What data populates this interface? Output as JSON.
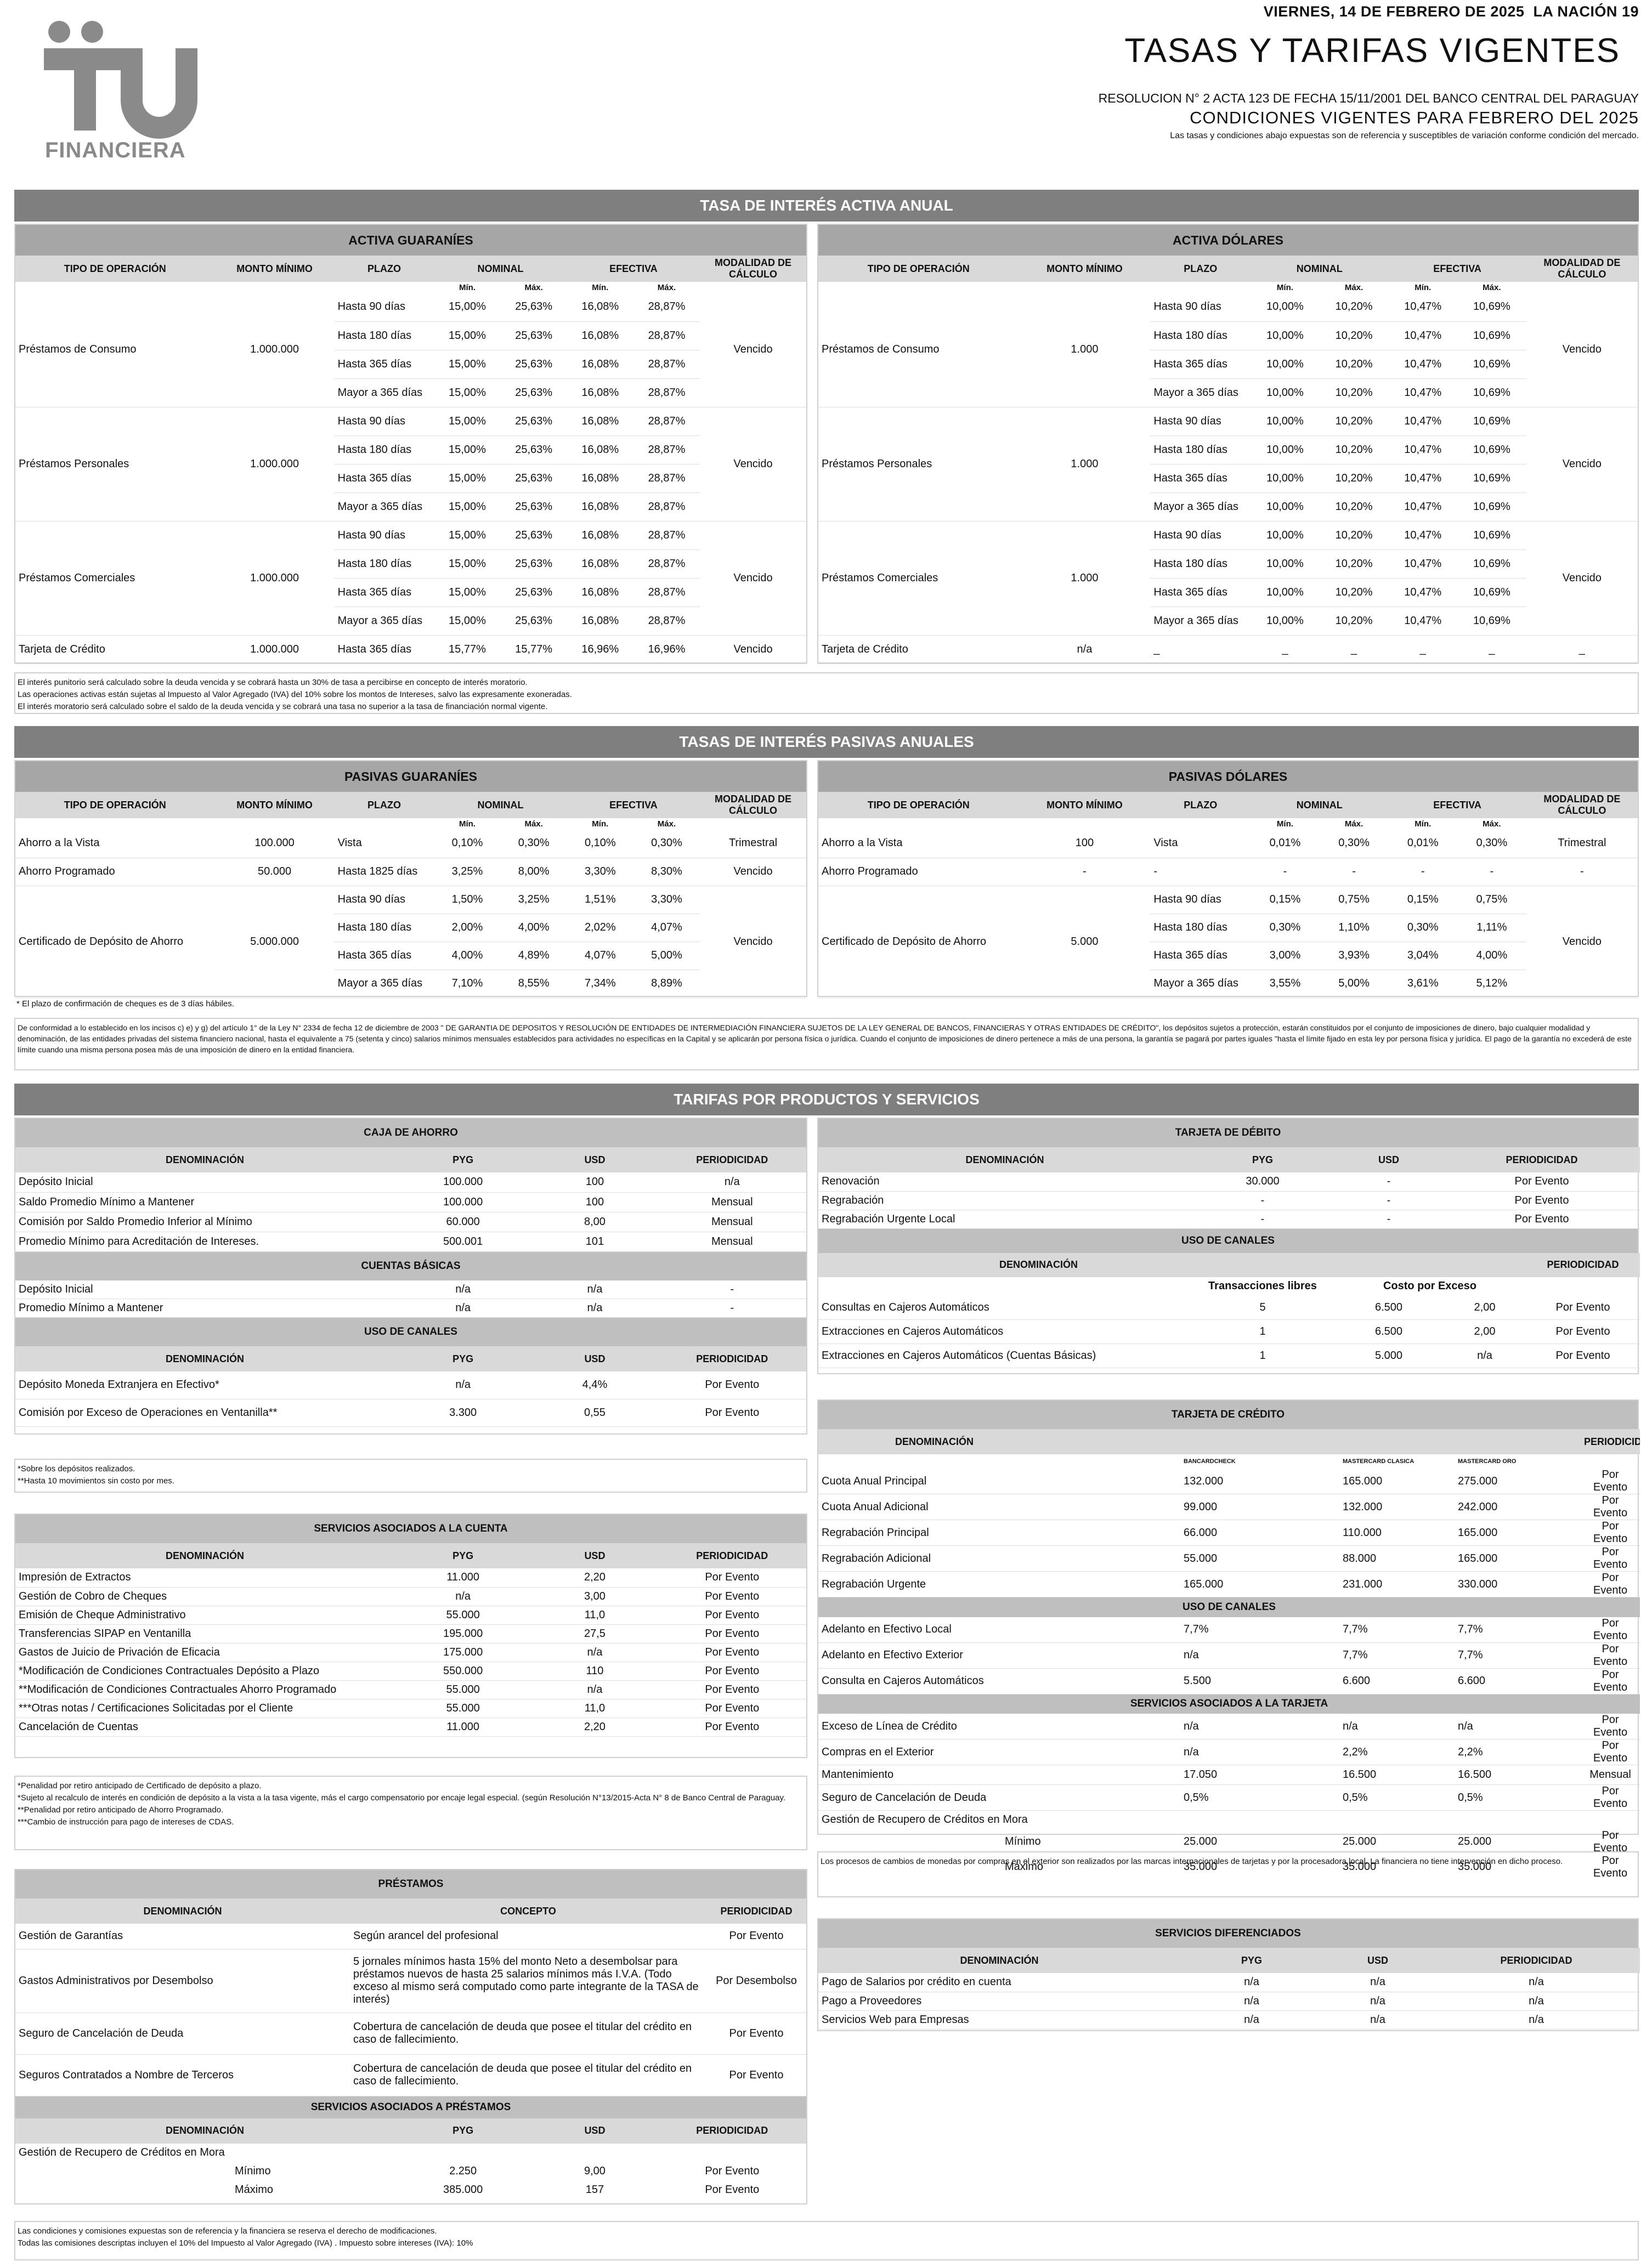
{
  "header": {
    "date": "VIERNES, 14 DE FEBRERO DE 2025",
    "paper": "LA NACIÓN",
    "page": "19",
    "title": "TASAS Y TARIFAS VIGENTES",
    "resolution": "RESOLUCION N° 2 ACTA 123 DE FECHA 15/11/2001 DEL BANCO CENTRAL DEL PARAGUAY",
    "conditions": "CONDICIONES VIGENTES PARA FEBRERO DEL 2025",
    "disclaimer": "Las tasas y condiciones abajo expuestas son de referencia y susceptibles de variación conforme condición del mercado.",
    "logo_text": "FINANCIERA"
  },
  "colors": {
    "logo": "#8a8a8a",
    "banner": "#7f7f7f",
    "sub": "#a6a6a6",
    "head": "#d9d9d9"
  },
  "activa": {
    "title": "TASA DE INTERÉS ACTIVA ANUAL",
    "gs_title": "ACTIVA GUARANÍES",
    "usd_title": "ACTIVA DÓLARES",
    "cols": {
      "tipo": "TIPO DE OPERACIÓN",
      "monto": "MONTO MÍNIMO",
      "plazo": "PLAZO",
      "nominal": "NOMINAL",
      "efectiva": "EFECTIVA",
      "modalidad": "MODALIDAD DE CÁLCULO",
      "min": "Mín.",
      "max": "Máx."
    },
    "gs": [
      {
        "tipo": "Préstamos de Consumo",
        "monto": "1.000.000",
        "modalidad": "Vencido",
        "rows": [
          [
            "Hasta 90 días",
            "15,00%",
            "25,63%",
            "16,08%",
            "28,87%"
          ],
          [
            "Hasta 180 días",
            "15,00%",
            "25,63%",
            "16,08%",
            "28,87%"
          ],
          [
            "Hasta 365 días",
            "15,00%",
            "25,63%",
            "16,08%",
            "28,87%"
          ],
          [
            "Mayor a 365 días",
            "15,00%",
            "25,63%",
            "16,08%",
            "28,87%"
          ]
        ]
      },
      {
        "tipo": "Préstamos Personales",
        "monto": "1.000.000",
        "modalidad": "Vencido",
        "rows": [
          [
            "Hasta 90 días",
            "15,00%",
            "25,63%",
            "16,08%",
            "28,87%"
          ],
          [
            "Hasta 180 días",
            "15,00%",
            "25,63%",
            "16,08%",
            "28,87%"
          ],
          [
            "Hasta 365 días",
            "15,00%",
            "25,63%",
            "16,08%",
            "28,87%"
          ],
          [
            "Mayor a 365 días",
            "15,00%",
            "25,63%",
            "16,08%",
            "28,87%"
          ]
        ]
      },
      {
        "tipo": "Préstamos Comerciales",
        "monto": "1.000.000",
        "modalidad": "Vencido",
        "rows": [
          [
            "Hasta 90 días",
            "15,00%",
            "25,63%",
            "16,08%",
            "28,87%"
          ],
          [
            "Hasta 180 días",
            "15,00%",
            "25,63%",
            "16,08%",
            "28,87%"
          ],
          [
            "Hasta 365 días",
            "15,00%",
            "25,63%",
            "16,08%",
            "28,87%"
          ],
          [
            "Mayor a 365 días",
            "15,00%",
            "25,63%",
            "16,08%",
            "28,87%"
          ]
        ]
      },
      {
        "tipo": "Tarjeta de Crédito",
        "monto": "1.000.000",
        "modalidad": "Vencido",
        "rows": [
          [
            "Hasta 365 días",
            "15,77%",
            "15,77%",
            "16,96%",
            "16,96%"
          ]
        ]
      }
    ],
    "usd": [
      {
        "tipo": "Préstamos de Consumo",
        "monto": "1.000",
        "modalidad": "Vencido",
        "rows": [
          [
            "Hasta 90 días",
            "10,00%",
            "10,20%",
            "10,47%",
            "10,69%"
          ],
          [
            "Hasta 180 días",
            "10,00%",
            "10,20%",
            "10,47%",
            "10,69%"
          ],
          [
            "Hasta 365 días",
            "10,00%",
            "10,20%",
            "10,47%",
            "10,69%"
          ],
          [
            "Mayor a 365 días",
            "10,00%",
            "10,20%",
            "10,47%",
            "10,69%"
          ]
        ]
      },
      {
        "tipo": "Préstamos Personales",
        "monto": "1.000",
        "modalidad": "Vencido",
        "rows": [
          [
            "Hasta 90 días",
            "10,00%",
            "10,20%",
            "10,47%",
            "10,69%"
          ],
          [
            "Hasta 180 días",
            "10,00%",
            "10,20%",
            "10,47%",
            "10,69%"
          ],
          [
            "Hasta 365 días",
            "10,00%",
            "10,20%",
            "10,47%",
            "10,69%"
          ],
          [
            "Mayor a 365 días",
            "10,00%",
            "10,20%",
            "10,47%",
            "10,69%"
          ]
        ]
      },
      {
        "tipo": "Préstamos Comerciales",
        "monto": "1.000",
        "modalidad": "Vencido",
        "rows": [
          [
            "Hasta 90 días",
            "10,00%",
            "10,20%",
            "10,47%",
            "10,69%"
          ],
          [
            "Hasta 180 días",
            "10,00%",
            "10,20%",
            "10,47%",
            "10,69%"
          ],
          [
            "Hasta 365 días",
            "10,00%",
            "10,20%",
            "10,47%",
            "10,69%"
          ],
          [
            "Mayor a 365 días",
            "10,00%",
            "10,20%",
            "10,47%",
            "10,69%"
          ]
        ]
      },
      {
        "tipo": "Tarjeta de Crédito",
        "monto": "n/a",
        "modalidad": "_",
        "rows": [
          [
            "_",
            "_",
            "_",
            "_",
            "_"
          ]
        ]
      }
    ],
    "notes": [
      "El interés punitorio será calculado sobre la deuda vencida y se cobrará hasta un 30% de tasa a percibirse en concepto de interés moratorio.",
      "Las operaciones activas están sujetas al Impuesto al Valor Agregado (IVA) del 10% sobre los montos de Intereses, salvo las expresamente exoneradas.",
      "El interés moratorio será calculado sobre el saldo de la deuda vencida y se cobrará una tasa no superior a la tasa de financiación normal vigente."
    ]
  },
  "pasiva": {
    "title": "TASAS DE INTERÉS PASIVAS ANUALES",
    "gs_title": "PASIVAS GUARANÍES",
    "usd_title": "PASIVAS DÓLARES",
    "gs": [
      {
        "tipo": "Ahorro a la Vista",
        "monto": "100.000",
        "modalidad": "Trimestral",
        "rows": [
          [
            "Vista",
            "0,10%",
            "0,30%",
            "0,10%",
            "0,30%"
          ]
        ]
      },
      {
        "tipo": "Ahorro Programado",
        "monto": "50.000",
        "modalidad": "Vencido",
        "rows": [
          [
            "Hasta 1825 días",
            "3,25%",
            "8,00%",
            "3,30%",
            "8,30%"
          ]
        ]
      },
      {
        "tipo": "Certificado de Depósito de Ahorro",
        "monto": "5.000.000",
        "modalidad": "Vencido",
        "rows": [
          [
            "Hasta 90 días",
            "1,50%",
            "3,25%",
            "1,51%",
            "3,30%"
          ],
          [
            "Hasta 180 días",
            "2,00%",
            "4,00%",
            "2,02%",
            "4,07%"
          ],
          [
            "Hasta 365 días",
            "4,00%",
            "4,89%",
            "4,07%",
            "5,00%"
          ],
          [
            "Mayor a 365 días",
            "7,10%",
            "8,55%",
            "7,34%",
            "8,89%"
          ]
        ]
      }
    ],
    "usd": [
      {
        "tipo": "Ahorro a la Vista",
        "monto": "100",
        "modalidad": "Trimestral",
        "rows": [
          [
            "Vista",
            "0,01%",
            "0,30%",
            "0,01%",
            "0,30%"
          ]
        ]
      },
      {
        "tipo": "Ahorro Programado",
        "monto": "-",
        "modalidad": "-",
        "rows": [
          [
            "-",
            "-",
            "-",
            "-",
            "-"
          ]
        ]
      },
      {
        "tipo": "Certificado de Depósito de Ahorro",
        "monto": "5.000",
        "modalidad": "Vencido",
        "rows": [
          [
            "Hasta 90 días",
            "0,15%",
            "0,75%",
            "0,15%",
            "0,75%"
          ],
          [
            "Hasta 180 días",
            "0,30%",
            "1,10%",
            "0,30%",
            "1,11%"
          ],
          [
            "Hasta 365 días",
            "3,00%",
            "3,93%",
            "3,04%",
            "4,00%"
          ],
          [
            "Mayor a 365 días",
            "3,55%",
            "5,00%",
            "3,61%",
            "5,12%"
          ]
        ]
      }
    ],
    "note1": "* El plazo de confirmación de cheques es de 3 días hábiles.",
    "note2": "De conformidad a lo establecido en los incisos c) e) y g) del artículo 1° de la Ley N° 2334 de fecha 12 de diciembre de 2003 \" DE GARANTIA DE DEPOSITOS Y RESOLUCIÓN DE ENTIDADES DE INTERMEDIACIÓN FINANCIERA SUJETOS DE LA LEY GENERAL DE BANCOS, FINANCIERAS Y OTRAS ENTIDADES DE CRÉDITO\", los depósitos sujetos a protección, estarán constituidos por el conjunto de imposiciones de dinero, bajo cualquier modalidad y denominación, de las entidades privadas del sistema financiero nacional, hasta el equivalente a 75 (setenta y cinco) salarios mínimos mensuales establecidos para actividades no específicas en la Capital y se aplicarán por persona física o jurídica. Cuando el conjunto de imposiciones de dinero pertenece a más de una persona, la garantía se pagará por partes iguales \"hasta el límite fijado en esta ley por persona física y jurídica. El pago de la garantía no excederá de este límite cuando una misma persona posea más de una imposición de dinero en la entidad financiera."
  },
  "tarifas": {
    "title": "TARIFAS POR PRODUCTOS Y SERVICIOS",
    "h": {
      "den": "DENOMINACIÓN",
      "pyg": "PYG",
      "usd": "USD",
      "per": "PERIODICIDAD",
      "concepto": "CONCEPTO"
    },
    "caja": {
      "title": "CAJA DE AHORRO",
      "rows": [
        [
          "Depósito Inicial",
          "100.000",
          "100",
          "n/a"
        ],
        [
          "Saldo Promedio Mínimo a Mantener",
          "100.000",
          "100",
          "Mensual"
        ],
        [
          "Comisión por Saldo Promedio Inferior al Mínimo",
          "60.000",
          "8,00",
          "Mensual"
        ],
        [
          "Promedio Mínimo para Acreditación de Intereses.",
          "500.001",
          "101",
          "Mensual"
        ]
      ]
    },
    "basicas": {
      "title": "CUENTAS BÁSICAS",
      "rows": [
        [
          "Depósito Inicial",
          "n/a",
          "n/a",
          "-"
        ],
        [
          "Promedio Mínimo a Mantener",
          "n/a",
          "n/a",
          "-"
        ]
      ]
    },
    "canales": {
      "title": "USO DE CANALES",
      "rows": [
        [
          "Depósito Moneda Extranjera en Efectivo*",
          "n/a",
          "4,4%",
          "Por Evento"
        ],
        [
          "Comisión por Exceso de Operaciones en Ventanilla**",
          "3.300",
          "0,55",
          "Por Evento"
        ]
      ],
      "notes": [
        "*Sobre los depósitos realizados.",
        "**Hasta 10 movimientos sin costo por mes."
      ]
    },
    "servicios": {
      "title": "SERVICIOS ASOCIADOS A LA CUENTA",
      "rows": [
        [
          "Impresión de Extractos",
          "11.000",
          "2,20",
          "Por Evento"
        ],
        [
          "Gestión de Cobro de Cheques",
          "n/a",
          "3,00",
          "Por Evento"
        ],
        [
          "Emisión de Cheque Administrativo",
          "55.000",
          "11,0",
          "Por Evento"
        ],
        [
          "Transferencias SIPAP en Ventanilla",
          "195.000",
          "27,5",
          "Por Evento"
        ],
        [
          "Gastos de Juicio de Privación de Eficacia",
          "175.000",
          "n/a",
          "Por Evento"
        ],
        [
          "*Modificación de Condiciones Contractuales Depósito a Plazo",
          "550.000",
          "110",
          "Por Evento"
        ],
        [
          "**Modificación de Condiciones Contractuales Ahorro Programado",
          "55.000",
          "n/a",
          "Por Evento"
        ],
        [
          "***Otras notas / Certificaciones Solicitadas por el Cliente",
          "55.000",
          "11,0",
          "Por Evento"
        ],
        [
          "Cancelación de Cuentas",
          "11.000",
          "2,20",
          "Por Evento"
        ]
      ],
      "notes": [
        "*Penalidad por retiro anticipado de Certificado de depósito a plazo.",
        "*Sujeto al recalculo de interés en condición de depósito a la vista a la tasa vigente, más el cargo compensatorio por encaje legal especial. (según Resolución N°13/2015-Acta N° 8 de Banco Central de Paraguay.",
        "**Penalidad por retiro anticipado de Ahorro Programado.",
        "***Cambio de instrucción para pago de intereses de CDAS."
      ]
    },
    "prestamos": {
      "title": "PRÉSTAMOS",
      "rows": [
        [
          "Gestión de Garantías",
          "Según arancel del profesional",
          "Por Evento"
        ],
        [
          "Gastos Administrativos por Desembolso",
          "5 jornales mínimos hasta 15% del monto Neto a desembolsar para préstamos nuevos de hasta 25 salarios mínimos más I.V.A. (Todo exceso al mismo será computado como parte integrante de la TASA de interés)",
          "Por Desembolso"
        ],
        [
          "Seguro de Cancelación de Deuda",
          "Cobertura de cancelación de deuda que posee el titular del crédito en caso de fallecimiento.",
          "Por Evento"
        ],
        [
          "Seguros Contratados a Nombre de Terceros",
          "Cobertura de cancelación de deuda que posee el titular del crédito en caso de fallecimiento.",
          "Por Evento"
        ]
      ]
    },
    "serv_prest": {
      "title": "SERVICIOS ASOCIADOS A PRÉSTAMOS",
      "label": "Gestión de Recupero de Créditos en Mora",
      "rows": [
        [
          "Mínimo",
          "2.250",
          "9,00",
          "Por Evento"
        ],
        [
          "Máximo",
          "385.000",
          "157",
          "Por Evento"
        ]
      ]
    },
    "final_notes": [
      "Las condiciones y comisiones expuestas son de referencia y la financiera se reserva el derecho de modificaciones.",
      "Todas las comisiones descriptas incluyen el 10% del Impuesto al Valor Agregado (IVA) . Impuesto sobre intereses (IVA): 10%"
    ],
    "debito": {
      "title": "TARJETA  DE DÉBITO",
      "rows": [
        [
          "Renovación",
          "30.000",
          "-",
          "Por Evento"
        ],
        [
          "Regrabación",
          "-",
          "-",
          "Por Evento"
        ],
        [
          "Regrabación Urgente Local",
          "-",
          "-",
          "Por Evento"
        ]
      ]
    },
    "canales_td": {
      "title": "USO DE CANALES",
      "trx": "Transacciones libres",
      "costo": "Costo por Exceso",
      "rows": [
        [
          "Consultas en Cajeros Automáticos",
          "5",
          "6.500",
          "2,00",
          "Por Evento"
        ],
        [
          "Extracciones en Cajeros Automáticos",
          "1",
          "6.500",
          "2,00",
          "Por Evento"
        ],
        [
          "Extracciones en Cajeros Automáticos (Cuentas Básicas)",
          "1",
          "5.000",
          "n/a",
          "Por Evento"
        ]
      ]
    },
    "credito": {
      "title": "TARJETA DE CRÉDITO",
      "brands": [
        "BANCARDCHECK",
        "MASTERCARD CLASICA",
        "MASTERCARD ORO"
      ],
      "rows": [
        [
          "Cuota Anual Principal",
          "132.000",
          "165.000",
          "275.000",
          "Por Evento"
        ],
        [
          "Cuota Anual Adicional",
          "99.000",
          "132.000",
          "242.000",
          "Por Evento"
        ],
        [
          "Regrabación Principal",
          "66.000",
          "110.000",
          "165.000",
          "Por Evento"
        ],
        [
          "Regrabación Adicional",
          "55.000",
          "88.000",
          "165.000",
          "Por Evento"
        ],
        [
          "Regrabación Urgente",
          "165.000",
          "231.000",
          "330.000",
          "Por Evento"
        ]
      ],
      "canales_title": "USO DE CANALES",
      "canales": [
        [
          "Adelanto en Efectivo Local",
          "7,7%",
          "7,7%",
          "7,7%",
          "Por Evento"
        ],
        [
          "Adelanto en Efectivo Exterior",
          "n/a",
          "7,7%",
          "7,7%",
          "Por Evento"
        ],
        [
          "Consulta en Cajeros Automáticos",
          "5.500",
          "6.600",
          "6.600",
          "Por Evento"
        ]
      ],
      "servicios_title": "SERVICIOS ASOCIADOS A LA TARJETA",
      "servicios": [
        [
          "Exceso de Línea de Crédito",
          "n/a",
          "n/a",
          "n/a",
          "Por Evento"
        ],
        [
          "Compras en el Exterior",
          "n/a",
          "2,2%",
          "2,2%",
          "Por Evento"
        ],
        [
          "Mantenimiento",
          "17.050",
          "16.500",
          "16.500",
          "Mensual"
        ],
        [
          "Seguro de Cancelación de Deuda",
          "0,5%",
          "0,5%",
          "0,5%",
          "Por Evento"
        ]
      ],
      "mora_label": "Gestión de Recupero de Créditos en Mora",
      "mora": [
        [
          "Mínimo",
          "25.000",
          "25.000",
          "25.000",
          "Por Evento"
        ],
        [
          "Máximo",
          "35.000",
          "35.000",
          "35.000",
          "Por Evento"
        ]
      ],
      "note": "Los procesos de cambios de monedas por compras en el exterior son realizados por las marcas internacionales de tarjetas y por la procesadora local. La financiera no tiene intervención en dicho proceso."
    },
    "diferenciados": {
      "title": "SERVICIOS DIFERENCIADOS",
      "rows": [
        [
          "Pago de Salarios por crédito en cuenta",
          "n/a",
          "n/a",
          "n/a"
        ],
        [
          "Pago a Proveedores",
          "n/a",
          "n/a",
          "n/a"
        ],
        [
          "Servicios Web para Empresas",
          "n/a",
          "n/a",
          "n/a"
        ]
      ]
    }
  }
}
